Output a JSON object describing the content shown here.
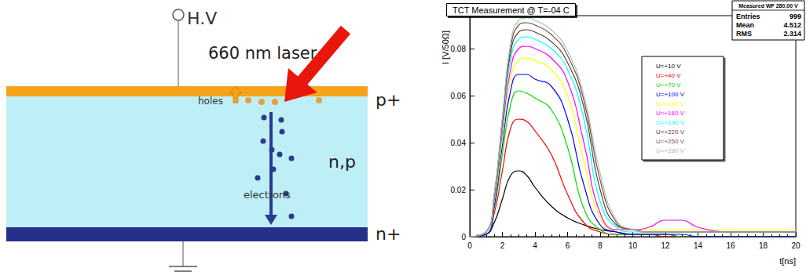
{
  "diagram": {
    "voltage_label": "H.V",
    "laser_label": "660 nm laser",
    "top_layer": "p+",
    "bulk": "n,p",
    "bottom_layer": "n+",
    "holes_label": "holes",
    "electrons_label": "electrons"
  },
  "chart_data": {
    "type": "line",
    "title": "TCT Measurement @ T=-04 C",
    "stats": {
      "title": "Measured WF 280.00 V",
      "rows": [
        {
          "label": "Entries",
          "value": 999
        },
        {
          "label": "Mean",
          "value": 4.512
        },
        {
          "label": "RMS",
          "value": 2.314
        }
      ]
    },
    "x_label": "t[ns]",
    "y_label": "I [V/50Ω]",
    "x": [
      0,
      1,
      1.5,
      2,
      2.5,
      3,
      3.5,
      4,
      5,
      6,
      7,
      8,
      9,
      10,
      11,
      12,
      13,
      14,
      16,
      18,
      20
    ],
    "series": [
      {
        "name": "U=+10 V",
        "color": "#000000",
        "values": [
          0,
          0.001,
          0.006,
          0.016,
          0.026,
          0.028,
          0.026,
          0.021,
          0.013,
          0.008,
          0.005,
          0.003,
          0.002,
          0.001,
          0.001,
          0.001,
          0,
          0,
          0,
          0,
          0
        ]
      },
      {
        "name": "U=+40 V",
        "color": "#ff0000",
        "values": [
          0,
          0.001,
          0.01,
          0.028,
          0.046,
          0.05,
          0.049,
          0.045,
          0.035,
          0.018,
          0.006,
          0.002,
          0.001,
          0.001,
          0.001,
          0,
          0,
          0,
          0,
          0,
          0
        ]
      },
      {
        "name": "U=+70 V",
        "color": "#00dd00",
        "values": [
          0,
          0.001,
          0.012,
          0.035,
          0.056,
          0.062,
          0.061,
          0.059,
          0.054,
          0.038,
          0.012,
          0.003,
          0.001,
          0.001,
          0.001,
          0.001,
          0,
          0,
          0,
          0,
          0
        ]
      },
      {
        "name": "U=+100 V",
        "color": "#0000ff",
        "values": [
          0,
          0.001,
          0.013,
          0.039,
          0.062,
          0.069,
          0.069,
          0.067,
          0.064,
          0.05,
          0.022,
          0.005,
          0.002,
          0.001,
          0.001,
          0.001,
          0.001,
          0,
          0,
          0,
          0
        ]
      },
      {
        "name": "U=+130 V",
        "color": "#ffff00",
        "values": [
          0,
          0.002,
          0.015,
          0.042,
          0.067,
          0.075,
          0.076,
          0.075,
          0.071,
          0.06,
          0.032,
          0.008,
          0.003,
          0.003,
          0.003,
          0.003,
          0.003,
          0.003,
          0.003,
          0.003,
          0.003
        ]
      },
      {
        "name": "U=+160 V",
        "color": "#ff00ff",
        "values": [
          0,
          0.002,
          0.016,
          0.045,
          0.071,
          0.08,
          0.081,
          0.08,
          0.076,
          0.066,
          0.04,
          0.01,
          0.003,
          0.003,
          0.004,
          0.007,
          0.007,
          0.004,
          0.002,
          0.002,
          0.002
        ]
      },
      {
        "name": "U=+190 V",
        "color": "#00ffff",
        "values": [
          0,
          0.002,
          0.017,
          0.047,
          0.075,
          0.084,
          0.085,
          0.084,
          0.08,
          0.071,
          0.05,
          0.015,
          0.004,
          0.002,
          0.002,
          0.002,
          0.002,
          0.002,
          0.002,
          0.002,
          0.002
        ]
      },
      {
        "name": "U=+220 V",
        "color": "#5a4438",
        "values": [
          0,
          0.002,
          0.017,
          0.049,
          0.078,
          0.087,
          0.088,
          0.087,
          0.083,
          0.074,
          0.055,
          0.02,
          0.005,
          0.003,
          0.002,
          0.002,
          0.002,
          0.002,
          0.002,
          0.002,
          0.002
        ]
      },
      {
        "name": "U=+250 V",
        "color": "#7b4d4d",
        "values": [
          0,
          0.002,
          0.018,
          0.05,
          0.08,
          0.09,
          0.091,
          0.09,
          0.086,
          0.077,
          0.058,
          0.024,
          0.006,
          0.003,
          0.002,
          0.002,
          0.002,
          0.002,
          0.002,
          0.002,
          0.002
        ]
      },
      {
        "name": "U=+280 V",
        "color": "#a8c4a8",
        "values": [
          0,
          0.002,
          0.018,
          0.051,
          0.082,
          0.092,
          0.093,
          0.092,
          0.088,
          0.079,
          0.06,
          0.027,
          0.007,
          0.003,
          0.002,
          0.002,
          0.002,
          0.002,
          0.002,
          0.002,
          0.002
        ]
      }
    ],
    "xlim": [
      0,
      20
    ],
    "xticks": [
      0,
      2,
      4,
      6,
      8,
      10,
      12,
      14,
      16,
      18,
      20
    ],
    "ylim": [
      0,
      0.094
    ],
    "yticks": [
      0,
      0.02,
      0.04,
      0.06,
      0.08
    ],
    "grid": false,
    "legend": "right"
  }
}
